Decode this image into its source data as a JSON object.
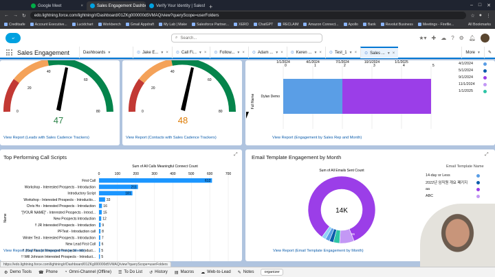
{
  "browser": {
    "tabs": [
      {
        "title": "Google Meet",
        "active": false,
        "color": "#00ac47"
      },
      {
        "title": "Sales Engagement Dashbo",
        "active": true,
        "color": "#00a1e0"
      },
      {
        "title": "Verify Your Identity | Salesforce",
        "active": false,
        "color": "#00a1e0"
      }
    ],
    "url": "edo.lightning.force.com/lightning/r/Dashboard/01ZKg000000d5VMAQ/view?queryScope=userFolders",
    "bookmarks": [
      "Creditsafe",
      "Account Executive...",
      "Lucidchart",
      "Workbench",
      "Gmail Appdraft",
      "My Lab | Make",
      "Salesforce Partner...",
      "XERO",
      "ChatGPT",
      "RECLAIM",
      "Amazon Connect...",
      "Apollo",
      "Bank",
      "Revolut Business",
      "Meetings - Firefile..."
    ],
    "all_bookmarks": "All Bookmarks"
  },
  "sf": {
    "search_placeholder": "Search...",
    "app_name": "Sales Engagement",
    "nav_items": [
      {
        "label": "Dashboards",
        "kind": "dash"
      },
      {
        "label": "Jake E...",
        "kind": "tab"
      },
      {
        "label": "Call Fi...",
        "kind": "tab"
      },
      {
        "label": "Follow...",
        "kind": "tab"
      },
      {
        "label": "Adam ...",
        "kind": "tab"
      },
      {
        "label": "Keren ...",
        "kind": "tab"
      },
      {
        "label": "Test_1",
        "kind": "tab"
      },
      {
        "label": "Sales ...",
        "kind": "active"
      }
    ],
    "more": "More"
  },
  "gauge1": {
    "ticks": [
      "20",
      "40",
      "60",
      "0",
      "80"
    ],
    "value": "47",
    "value_color": "#2e844a",
    "link": "View Report (Leads with Sales Cadence Trackers)"
  },
  "gauge2": {
    "ticks": [
      "20",
      "40",
      "60",
      "0",
      "80"
    ],
    "value": "48",
    "value_color": "#dd7a01",
    "link": "View Report (Contacts with Sales Cadence Trackers)"
  },
  "rep_chart": {
    "top_ticks": [
      "1/1/2024",
      "4/1/2024",
      "7/1/2024",
      "10/1/2024",
      "1/1/2025"
    ],
    "tick_numbers": [
      "0",
      "1",
      "2",
      "3",
      "4",
      "5"
    ],
    "ylabel": "Full Name",
    "row_label": "Dylan Demo",
    "segments": [
      {
        "value": 2,
        "color": "#5a9ee6"
      },
      {
        "value": 3,
        "color": "#9b3ee8"
      }
    ],
    "legend": [
      {
        "label": "4/1/2024",
        "color": "#5a9ee6"
      },
      {
        "label": "5/1/2024",
        "color": "#0b5cab"
      },
      {
        "label": "9/1/2024",
        "color": "#9b3ee8"
      },
      {
        "label": "11/1/2024",
        "color": "#c398f5"
      },
      {
        "label": "1/1/2025",
        "color": "#2ec4a6"
      }
    ],
    "link": "View Report (Engagement by Sales Rep and Month)"
  },
  "call_scripts": {
    "title": "Top Performing Call Scripts",
    "xlabel": "Sum of All Calls Meaningful Connect Count",
    "ylabel": "Name",
    "ticks": [
      "0",
      "100",
      "200",
      "300",
      "400",
      "500",
      "600",
      "700"
    ],
    "xmax": 700,
    "bars": [
      {
        "label": "First Call",
        "value": 612
      },
      {
        "label": "Workshop - Interested Prospects - Introduction",
        "value": 211
      },
      {
        "label": "Introductory Script",
        "value": 181
      },
      {
        "label": "Workshop - Interested Prospects - Introductio...",
        "value": 33
      },
      {
        "label": "Chris Ho - Interested Prospects - Introduction",
        "value": 16
      },
      {
        "label": "\"[YOUR NAME]\" - Interested Prospects - Introd...",
        "value": 15
      },
      {
        "label": "New Prospects Introduction",
        "value": 12
      },
      {
        "label": "!! JR Interested Prospects - Introduction",
        "value": 9
      },
      {
        "label": "PFTest - Introduction call",
        "value": 8
      },
      {
        "label": "Winter Test - Interested Prospects - Introduction",
        "value": 7
      },
      {
        "label": "New Lead First Call",
        "value": 6
      },
      {
        "label": "!! Joey Fasulo Interested Prospects - Introduct...",
        "value": 5
      },
      {
        "label": "!! Will Johnson Interested Prospects - Introduct...",
        "value": 5
      }
    ],
    "bar_color": "#1b96ff",
    "link": "View Report (Call Script Engagement by Month)"
  },
  "email_chart": {
    "title": "Email Template Engagement by Month",
    "subtitle": "Sum of All Emails Sent Count",
    "center": "14K",
    "legend_title": "Email Template Name",
    "legend": [
      {
        "label": "14-day or Less",
        "color": "#5a9ee6"
      },
      {
        "label": "2022년 임직원 개요 패키지",
        "color": "#0b5cab"
      },
      {
        "label": "aa",
        "color": "#9b3ee8"
      },
      {
        "label": "ABC",
        "color": "#c398f5"
      }
    ],
    "slices": [
      {
        "label": "",
        "value": 84,
        "color": "#9b3ee8"
      },
      {
        "label": "",
        "value": 7,
        "color": "#c398f5"
      },
      {
        "label": "",
        "value": 3,
        "color": "#2ec4a6"
      },
      {
        "label": "",
        "value": 2,
        "color": "#0b5cab"
      },
      {
        "label": "",
        "value": 2,
        "color": "#5a9ee6"
      },
      {
        "label": "",
        "value": 2,
        "color": "#8fd3f7"
      }
    ],
    "slice_label": "96",
    "link": "View Report (Email Template Engagement by Month)"
  },
  "utility": {
    "items": [
      "Demo Tools",
      "Phone",
      "Omni-Channel (Offline)",
      "To Do List",
      "History",
      "Macros",
      "Web-to-Lead",
      "Notes"
    ],
    "organizer": "organizer"
  },
  "status_url": "https://edo.lightning.force.com/lightning/r/Dashboard/01ZKg000000d5VMAQ/view?queryScope=userFolders"
}
